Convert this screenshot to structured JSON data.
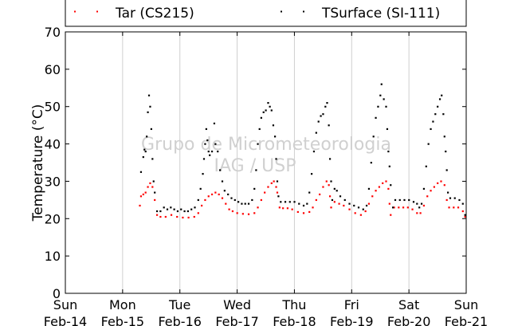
{
  "chart_data": {
    "type": "scatter",
    "title": "",
    "xlabel": "",
    "ylabel": "Temperature (°C)",
    "ylim": [
      0,
      70
    ],
    "yticks": [
      0,
      10,
      20,
      30,
      40,
      50,
      60,
      70
    ],
    "xlim": [
      0,
      7
    ],
    "xticks": [
      {
        "day": "Sun",
        "date": "Feb-14"
      },
      {
        "day": "Mon",
        "date": "Feb-15"
      },
      {
        "day": "Tue",
        "date": "Feb-16"
      },
      {
        "day": "Wed",
        "date": "Feb-17"
      },
      {
        "day": "Thu",
        "date": "Feb-18"
      },
      {
        "day": "Fri",
        "date": "Feb-19"
      },
      {
        "day": "Sat",
        "date": "Feb-20"
      },
      {
        "day": "Sun",
        "date": "Feb-21"
      }
    ],
    "grid": "vertical",
    "legend": "top",
    "watermark": [
      "Grupo de Micrometeorologia",
      "IAG / USP"
    ],
    "series": [
      {
        "name": "Tar (CS215)",
        "color": "#ff0000",
        "points": [
          [
            1.3,
            23.5
          ],
          [
            1.32,
            26
          ],
          [
            1.36,
            26.5
          ],
          [
            1.4,
            27
          ],
          [
            1.44,
            28.5
          ],
          [
            1.48,
            29.5
          ],
          [
            1.52,
            28.5
          ],
          [
            1.56,
            25
          ],
          [
            1.6,
            21
          ],
          [
            1.66,
            20.5
          ],
          [
            1.75,
            20.5
          ],
          [
            1.85,
            21
          ],
          [
            1.95,
            20.5
          ],
          [
            2.05,
            20.3
          ],
          [
            2.15,
            20.3
          ],
          [
            2.25,
            20.5
          ],
          [
            2.32,
            21.5
          ],
          [
            2.38,
            23.5
          ],
          [
            2.44,
            25
          ],
          [
            2.5,
            26
          ],
          [
            2.56,
            26.5
          ],
          [
            2.62,
            27
          ],
          [
            2.68,
            26.5
          ],
          [
            2.74,
            25.5
          ],
          [
            2.8,
            24
          ],
          [
            2.86,
            22.5
          ],
          [
            2.92,
            22
          ],
          [
            3.0,
            21.5
          ],
          [
            3.1,
            21.3
          ],
          [
            3.2,
            21.2
          ],
          [
            3.3,
            21.5
          ],
          [
            3.36,
            23
          ],
          [
            3.42,
            25
          ],
          [
            3.48,
            27
          ],
          [
            3.54,
            28.5
          ],
          [
            3.6,
            29.5
          ],
          [
            3.64,
            30
          ],
          [
            3.68,
            28.5
          ],
          [
            3.7,
            27
          ],
          [
            3.74,
            23
          ],
          [
            3.8,
            22.8
          ],
          [
            3.88,
            22.8
          ],
          [
            3.96,
            22.5
          ],
          [
            4.06,
            21.8
          ],
          [
            4.16,
            21.5
          ],
          [
            4.26,
            21.8
          ],
          [
            4.32,
            23
          ],
          [
            4.38,
            25
          ],
          [
            4.44,
            26.5
          ],
          [
            4.5,
            28.5
          ],
          [
            4.56,
            30
          ],
          [
            4.6,
            29
          ],
          [
            4.62,
            26
          ],
          [
            4.64,
            23
          ],
          [
            4.7,
            24.5
          ],
          [
            4.78,
            24
          ],
          [
            4.86,
            23.5
          ],
          [
            4.96,
            22.5
          ],
          [
            5.06,
            21.5
          ],
          [
            5.16,
            21
          ],
          [
            5.24,
            22
          ],
          [
            5.3,
            24
          ],
          [
            5.36,
            26
          ],
          [
            5.42,
            27.5
          ],
          [
            5.48,
            28.5
          ],
          [
            5.54,
            29.5
          ],
          [
            5.6,
            30
          ],
          [
            5.64,
            28
          ],
          [
            5.66,
            24
          ],
          [
            5.68,
            21
          ],
          [
            5.74,
            23
          ],
          [
            5.82,
            23
          ],
          [
            5.9,
            23
          ],
          [
            5.98,
            23
          ],
          [
            6.06,
            22.5
          ],
          [
            6.14,
            21.5
          ],
          [
            6.2,
            21.5
          ],
          [
            6.26,
            23.5
          ],
          [
            6.32,
            26
          ],
          [
            6.38,
            27.5
          ],
          [
            6.44,
            28.5
          ],
          [
            6.5,
            29.5
          ],
          [
            6.56,
            30
          ],
          [
            6.62,
            29
          ],
          [
            6.66,
            25
          ],
          [
            6.7,
            23
          ],
          [
            6.78,
            23
          ],
          [
            6.86,
            23
          ],
          [
            6.94,
            22
          ],
          [
            6.98,
            20.5
          ]
        ]
      },
      {
        "name": "TSurface (SI-111)",
        "color": "#000000",
        "points": [
          [
            1.32,
            32.5
          ],
          [
            1.36,
            36.5
          ],
          [
            1.38,
            38.5
          ],
          [
            1.4,
            38
          ],
          [
            1.42,
            42
          ],
          [
            1.44,
            48.5
          ],
          [
            1.46,
            53
          ],
          [
            1.48,
            50
          ],
          [
            1.5,
            44
          ],
          [
            1.52,
            36
          ],
          [
            1.54,
            30
          ],
          [
            1.56,
            27
          ],
          [
            1.6,
            22
          ],
          [
            1.66,
            22
          ],
          [
            1.72,
            23
          ],
          [
            1.78,
            22.5
          ],
          [
            1.84,
            23
          ],
          [
            1.9,
            22.5
          ],
          [
            1.96,
            22
          ],
          [
            2.02,
            22.5
          ],
          [
            2.08,
            22
          ],
          [
            2.14,
            22
          ],
          [
            2.2,
            22.5
          ],
          [
            2.26,
            23
          ],
          [
            2.32,
            25
          ],
          [
            2.36,
            28
          ],
          [
            2.4,
            32
          ],
          [
            2.42,
            36
          ],
          [
            2.44,
            40
          ],
          [
            2.46,
            44
          ],
          [
            2.48,
            41
          ],
          [
            2.5,
            38
          ],
          [
            2.52,
            37
          ],
          [
            2.56,
            38
          ],
          [
            2.6,
            45.5
          ],
          [
            2.62,
            40
          ],
          [
            2.66,
            38
          ],
          [
            2.7,
            33
          ],
          [
            2.74,
            30
          ],
          [
            2.78,
            27.5
          ],
          [
            2.84,
            26.5
          ],
          [
            2.9,
            25.5
          ],
          [
            2.96,
            25
          ],
          [
            3.02,
            24.5
          ],
          [
            3.08,
            24
          ],
          [
            3.14,
            24
          ],
          [
            3.2,
            24
          ],
          [
            3.26,
            25
          ],
          [
            3.3,
            28
          ],
          [
            3.33,
            33
          ],
          [
            3.36,
            40
          ],
          [
            3.39,
            44
          ],
          [
            3.42,
            47
          ],
          [
            3.46,
            48.5
          ],
          [
            3.5,
            49
          ],
          [
            3.54,
            51
          ],
          [
            3.57,
            50
          ],
          [
            3.6,
            49
          ],
          [
            3.63,
            45
          ],
          [
            3.66,
            42
          ],
          [
            3.68,
            36
          ],
          [
            3.7,
            30
          ],
          [
            3.72,
            26
          ],
          [
            3.76,
            24.5
          ],
          [
            3.84,
            24.5
          ],
          [
            3.92,
            24.5
          ],
          [
            4.0,
            24.5
          ],
          [
            4.08,
            24
          ],
          [
            4.16,
            23.5
          ],
          [
            4.22,
            24
          ],
          [
            4.26,
            27
          ],
          [
            4.3,
            32
          ],
          [
            4.34,
            38
          ],
          [
            4.38,
            43
          ],
          [
            4.42,
            46
          ],
          [
            4.46,
            47.5
          ],
          [
            4.5,
            48
          ],
          [
            4.54,
            50
          ],
          [
            4.57,
            51
          ],
          [
            4.6,
            45
          ],
          [
            4.62,
            36
          ],
          [
            4.64,
            30
          ],
          [
            4.66,
            25
          ],
          [
            4.7,
            28
          ],
          [
            4.74,
            27.5
          ],
          [
            4.8,
            26
          ],
          [
            4.88,
            25
          ],
          [
            4.96,
            24
          ],
          [
            5.04,
            23.5
          ],
          [
            5.12,
            23
          ],
          [
            5.2,
            22.5
          ],
          [
            5.26,
            23.5
          ],
          [
            5.3,
            28
          ],
          [
            5.34,
            35
          ],
          [
            5.38,
            42
          ],
          [
            5.42,
            47
          ],
          [
            5.46,
            50
          ],
          [
            5.5,
            53
          ],
          [
            5.52,
            56
          ],
          [
            5.56,
            52
          ],
          [
            5.6,
            50
          ],
          [
            5.62,
            44
          ],
          [
            5.64,
            38
          ],
          [
            5.66,
            34
          ],
          [
            5.68,
            29
          ],
          [
            5.72,
            23
          ],
          [
            5.76,
            25
          ],
          [
            5.84,
            25
          ],
          [
            5.92,
            25
          ],
          [
            6.0,
            25
          ],
          [
            6.08,
            24.5
          ],
          [
            6.14,
            24
          ],
          [
            6.18,
            23
          ],
          [
            6.22,
            24
          ],
          [
            6.26,
            28
          ],
          [
            6.3,
            34
          ],
          [
            6.34,
            40
          ],
          [
            6.38,
            44
          ],
          [
            6.42,
            46
          ],
          [
            6.46,
            48
          ],
          [
            6.5,
            50
          ],
          [
            6.54,
            52
          ],
          [
            6.57,
            53
          ],
          [
            6.6,
            48
          ],
          [
            6.62,
            42
          ],
          [
            6.64,
            38
          ],
          [
            6.66,
            33
          ],
          [
            6.68,
            27
          ],
          [
            6.72,
            25.5
          ],
          [
            6.8,
            25.5
          ],
          [
            6.88,
            25
          ],
          [
            6.94,
            24
          ],
          [
            6.98,
            21
          ]
        ]
      }
    ]
  }
}
